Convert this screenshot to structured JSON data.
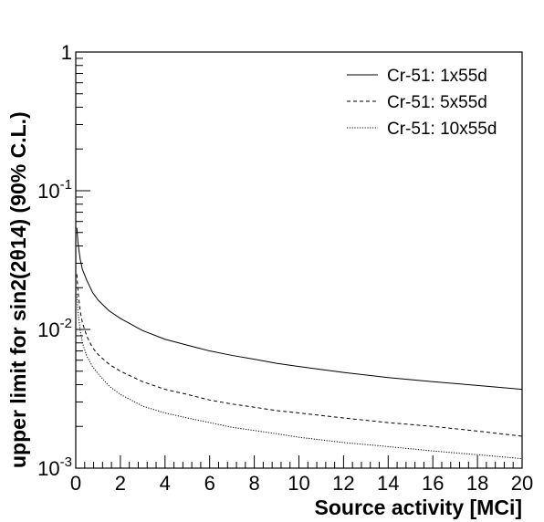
{
  "chart_data": {
    "type": "line",
    "title": "",
    "xlabel": "Source activity [MCi]",
    "ylabel": "upper limit for sin2(2θ14) (90% C.L.)",
    "xlim": [
      0,
      20
    ],
    "ylim": [
      0.001,
      1
    ],
    "yscale": "log",
    "grid": false,
    "legend_position": "top-right",
    "x_ticks": [
      0,
      2,
      4,
      6,
      8,
      10,
      12,
      14,
      16,
      18,
      20
    ],
    "x_tick_labels": [
      "0",
      "2",
      "4",
      "6",
      "8",
      "10",
      "12",
      "14",
      "16",
      "18",
      "20"
    ],
    "y_ticks": [
      0.001,
      0.01,
      0.1,
      1
    ],
    "y_tick_labels": [
      {
        "base": "10",
        "exp": "-3"
      },
      {
        "base": "10",
        "exp": "-2"
      },
      {
        "base": "10",
        "exp": "-1"
      },
      {
        "base": "1",
        "exp": ""
      }
    ],
    "series": [
      {
        "name": "Cr-51: 1x55d",
        "line_style": "solid",
        "x": [
          0.05,
          0.1,
          0.2,
          0.3,
          0.5,
          0.75,
          1,
          1.5,
          2,
          3,
          4,
          5,
          6,
          7,
          8,
          9,
          10,
          12,
          14,
          16,
          18,
          20
        ],
        "y": [
          0.054,
          0.042,
          0.032,
          0.027,
          0.0225,
          0.0185,
          0.0163,
          0.0136,
          0.012,
          0.0098,
          0.0085,
          0.0077,
          0.007,
          0.0065,
          0.0061,
          0.0057,
          0.0054,
          0.0049,
          0.0045,
          0.0042,
          0.00395,
          0.0037
        ]
      },
      {
        "name": "Cr-51: 5x55d",
        "line_style": "dashed",
        "x": [
          0.05,
          0.1,
          0.2,
          0.3,
          0.5,
          0.75,
          1,
          1.5,
          2,
          3,
          4,
          5,
          6,
          7,
          8,
          9,
          10,
          12,
          14,
          16,
          18,
          20
        ],
        "y": [
          0.025,
          0.019,
          0.0135,
          0.0112,
          0.0089,
          0.0074,
          0.0066,
          0.0056,
          0.005,
          0.0042,
          0.0037,
          0.0034,
          0.0031,
          0.0029,
          0.00275,
          0.0026,
          0.0025,
          0.0023,
          0.00213,
          0.002,
          0.00185,
          0.0017
        ]
      },
      {
        "name": "Cr-51: 10x55d",
        "line_style": "dotted",
        "x": [
          0.05,
          0.1,
          0.2,
          0.3,
          0.5,
          0.75,
          1,
          1.5,
          2,
          3,
          4,
          5,
          6,
          7,
          8,
          9,
          10,
          12,
          14,
          16,
          18,
          20
        ],
        "y": [
          0.018,
          0.0135,
          0.0098,
          0.008,
          0.0064,
          0.0054,
          0.0048,
          0.0039,
          0.0034,
          0.0028,
          0.0025,
          0.0023,
          0.00213,
          0.00197,
          0.00187,
          0.00177,
          0.00167,
          0.00153,
          0.00143,
          0.00133,
          0.00125,
          0.00117
        ]
      }
    ]
  }
}
